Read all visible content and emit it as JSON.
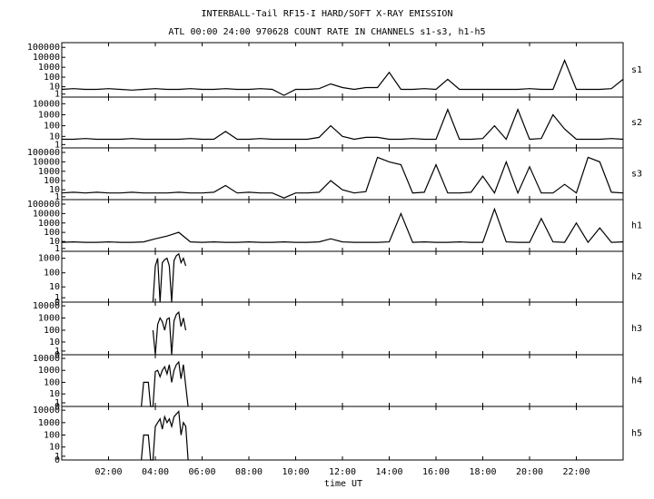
{
  "chart_data": [
    {
      "type": "line",
      "title": "INTERBALL-Tail RF15-I HARD/SOFT X-RAY EMISSION",
      "subtitle": "ATL 00:00 24:00 970628  COUNT RATE IN CHANNELS s1-s3, h1-h5",
      "yscale": "log1p",
      "xlim": [
        0,
        24
      ],
      "ylim": [
        0,
        300000
      ],
      "yticks": [
        100000,
        10000,
        1000,
        100,
        10,
        1
      ],
      "x": [
        0,
        0.5,
        1,
        1.5,
        2,
        2.5,
        3,
        3.5,
        4,
        4.5,
        5,
        5.5,
        6,
        6.5,
        7,
        7.5,
        8,
        8.5,
        9,
        9.5,
        10,
        10.5,
        11,
        11.5,
        12,
        12.5,
        13,
        13.5,
        14,
        14.5,
        15,
        15.5,
        16,
        16.5,
        17,
        17.5,
        18,
        18.5,
        19,
        19.5,
        20,
        20.5,
        21,
        21.5,
        22,
        22.5,
        23,
        23.5,
        24
      ],
      "series": [
        {
          "name": "s1",
          "color": "#000000",
          "values": [
            5,
            6,
            5,
            5,
            6,
            5,
            4,
            5,
            6,
            5,
            5,
            6,
            5,
            5,
            6,
            5,
            5,
            6,
            5,
            0.5,
            5,
            5,
            6,
            20,
            8,
            5,
            8,
            8,
            300,
            5,
            5,
            6,
            5,
            60,
            5,
            5,
            5,
            5,
            5,
            5,
            6,
            5,
            5,
            5000,
            5,
            5,
            5,
            6,
            60
          ]
        }
      ]
    },
    {
      "type": "line",
      "yscale": "log1p",
      "xlim": [
        0,
        24
      ],
      "ylim": [
        0,
        40000
      ],
      "yticks": [
        10000,
        1000,
        100,
        10,
        1
      ],
      "x": [
        0,
        0.5,
        1,
        1.5,
        2,
        2.5,
        3,
        3.5,
        4,
        4.5,
        5,
        5.5,
        6,
        6.5,
        7,
        7.5,
        8,
        8.5,
        9,
        9.5,
        10,
        10.5,
        11,
        11.5,
        12,
        12.5,
        13,
        13.5,
        14,
        14.5,
        15,
        15.5,
        16,
        16.5,
        17,
        17.5,
        18,
        18.5,
        19,
        19.5,
        20,
        20.5,
        21,
        21.5,
        22,
        22.5,
        23,
        23.5,
        24
      ],
      "series": [
        {
          "name": "s2",
          "color": "#000000",
          "values": [
            5,
            5,
            6,
            5,
            5,
            5,
            6,
            5,
            5,
            5,
            5,
            6,
            5,
            5,
            30,
            5,
            5,
            6,
            5,
            5,
            5,
            5,
            8,
            100,
            10,
            5,
            8,
            8,
            5,
            5,
            6,
            5,
            5,
            3000,
            5,
            5,
            6,
            100,
            5,
            3000,
            5,
            6,
            1000,
            50,
            5,
            5,
            5,
            6,
            5
          ]
        }
      ]
    },
    {
      "type": "line",
      "yscale": "log1p",
      "xlim": [
        0,
        24
      ],
      "ylim": [
        0,
        300000
      ],
      "yticks": [
        100000,
        10000,
        1000,
        100,
        10,
        1
      ],
      "x": [
        0,
        0.5,
        1,
        1.5,
        2,
        2.5,
        3,
        3.5,
        4,
        4.5,
        5,
        5.5,
        6,
        6.5,
        7,
        7.5,
        8,
        8.5,
        9,
        9.5,
        10,
        10.5,
        11,
        11.5,
        12,
        12.5,
        13,
        13.5,
        14,
        14.5,
        15,
        15.5,
        16,
        16.5,
        17,
        17.5,
        18,
        18.5,
        19,
        19.5,
        20,
        20.5,
        21,
        21.5,
        22,
        22.5,
        23,
        23.5,
        24
      ],
      "series": [
        {
          "name": "s3",
          "color": "#000000",
          "values": [
            4,
            5,
            4,
            5,
            4,
            4,
            5,
            4,
            4,
            4,
            5,
            4,
            4,
            5,
            30,
            4,
            5,
            4,
            4,
            0.5,
            4,
            4,
            5,
            100,
            10,
            4,
            6,
            30000,
            10000,
            5000,
            4,
            5,
            5000,
            4,
            4,
            5,
            300,
            4,
            10000,
            4,
            3000,
            4,
            4,
            40,
            4,
            30000,
            10000,
            5,
            4
          ]
        }
      ]
    },
    {
      "type": "line",
      "yscale": "log1p",
      "xlim": [
        0,
        24
      ],
      "ylim": [
        0,
        300000
      ],
      "yticks": [
        100000,
        10000,
        1000,
        100,
        10,
        1
      ],
      "x": [
        0,
        0.5,
        1,
        1.5,
        2,
        2.5,
        3,
        3.5,
        4,
        4.5,
        5,
        5.5,
        6,
        6.5,
        7,
        7.5,
        8,
        8.5,
        9,
        9.5,
        10,
        10.5,
        11,
        11.5,
        12,
        12.5,
        13,
        13.5,
        14,
        14.5,
        15,
        15.5,
        16,
        16.5,
        17,
        17.5,
        18,
        18.5,
        19,
        19.5,
        20,
        20.5,
        21,
        21.5,
        22,
        22.5,
        23,
        23.5,
        24
      ],
      "series": [
        {
          "name": "h1",
          "color": "#000000",
          "values": [
            8,
            9,
            8,
            8,
            9,
            8,
            8,
            9,
            20,
            40,
            100,
            9,
            8,
            9,
            8,
            8,
            9,
            8,
            8,
            9,
            8,
            8,
            9,
            20,
            9,
            8,
            8,
            8,
            9,
            10000,
            8,
            9,
            8,
            8,
            9,
            8,
            8,
            30000,
            9,
            8,
            8,
            3000,
            9,
            8,
            1000,
            8,
            300,
            8,
            9
          ]
        }
      ]
    },
    {
      "type": "line",
      "yscale": "log1p",
      "xlim": [
        0,
        24
      ],
      "ylim": [
        0,
        3000
      ],
      "yticks": [
        1000,
        100,
        10,
        1,
        0
      ],
      "x": [
        3.4,
        3.5,
        3.6,
        3.7,
        3.8,
        3.9,
        4,
        4.1,
        4.2,
        4.3,
        4.4,
        4.5,
        4.6,
        4.7,
        4.8,
        4.9,
        5,
        5.1,
        5.2,
        5.3,
        5.4
      ],
      "series": [
        {
          "name": "h2",
          "color": "#000000",
          "values": [
            null,
            null,
            null,
            null,
            null,
            0,
            300,
            1000,
            0,
            500,
            800,
            1000,
            300,
            0,
            700,
            1500,
            2000,
            500,
            1000,
            300,
            null
          ]
        }
      ]
    },
    {
      "type": "line",
      "yscale": "log1p",
      "xlim": [
        0,
        24
      ],
      "ylim": [
        0,
        20000
      ],
      "yticks": [
        10000,
        1000,
        100,
        10,
        1,
        0
      ],
      "x": [
        3.4,
        3.5,
        3.6,
        3.7,
        3.8,
        3.9,
        4,
        4.1,
        4.2,
        4.3,
        4.4,
        4.5,
        4.6,
        4.7,
        4.8,
        4.9,
        5,
        5.1,
        5.2,
        5.3,
        5.4
      ],
      "series": [
        {
          "name": "h3",
          "color": "#000000",
          "values": [
            null,
            null,
            null,
            null,
            null,
            100,
            0,
            300,
            1000,
            500,
            100,
            800,
            1000,
            0,
            600,
            2000,
            3000,
            200,
            1000,
            100,
            null
          ]
        }
      ]
    },
    {
      "type": "line",
      "yscale": "log1p",
      "xlim": [
        0,
        24
      ],
      "ylim": [
        0,
        20000
      ],
      "yticks": [
        10000,
        1000,
        100,
        10,
        1,
        0
      ],
      "x": [
        3.4,
        3.5,
        3.6,
        3.7,
        3.8,
        3.9,
        4,
        4.1,
        4.2,
        4.3,
        4.4,
        4.5,
        4.6,
        4.7,
        4.8,
        4.9,
        5,
        5.1,
        5.2,
        5.3,
        5.4
      ],
      "series": [
        {
          "name": "h4",
          "color": "#000000",
          "values": [
            0,
            100,
            100,
            100,
            0,
            0,
            800,
            1000,
            300,
            1000,
            2000,
            500,
            3000,
            100,
            1000,
            3000,
            5000,
            200,
            3000,
            50,
            0
          ]
        }
      ]
    },
    {
      "type": "line",
      "yscale": "log1p",
      "xlim": [
        0,
        24
      ],
      "ylim": [
        0,
        20000
      ],
      "yticks": [
        10000,
        1000,
        100,
        10,
        1,
        0
      ],
      "xlabel": "time UT",
      "xticks": [
        {
          "value": 2,
          "label": "02:00"
        },
        {
          "value": 4,
          "label": "04:00"
        },
        {
          "value": 6,
          "label": "06:00"
        },
        {
          "value": 8,
          "label": "08:00"
        },
        {
          "value": 10,
          "label": "10:00"
        },
        {
          "value": 12,
          "label": "12:00"
        },
        {
          "value": 14,
          "label": "14:00"
        },
        {
          "value": 16,
          "label": "16:00"
        },
        {
          "value": 18,
          "label": "18:00"
        },
        {
          "value": 20,
          "label": "20:00"
        },
        {
          "value": 22,
          "label": "22:00"
        }
      ],
      "x": [
        3.4,
        3.5,
        3.6,
        3.7,
        3.8,
        3.9,
        4,
        4.1,
        4.2,
        4.3,
        4.4,
        4.5,
        4.6,
        4.7,
        4.8,
        4.9,
        5,
        5.1,
        5.2,
        5.3,
        5.4
      ],
      "series": [
        {
          "name": "h5",
          "color": "#000000",
          "values": [
            0,
            100,
            100,
            100,
            0,
            0,
            500,
            1000,
            2000,
            300,
            3000,
            1000,
            2000,
            500,
            3000,
            5000,
            8000,
            100,
            1000,
            500,
            0
          ]
        }
      ]
    }
  ]
}
